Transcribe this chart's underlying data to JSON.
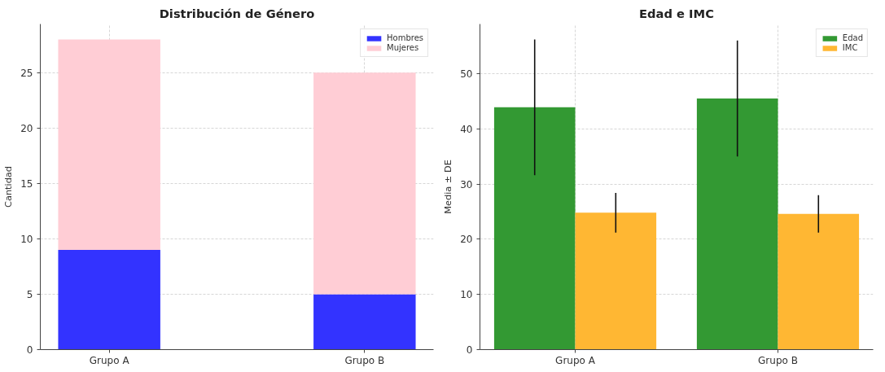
{
  "chart_data": [
    {
      "type": "bar",
      "title": "Distribución de Género",
      "ylabel": "Cantidad",
      "categories": [
        "Grupo A",
        "Grupo B"
      ],
      "stacked": true,
      "series": [
        {
          "name": "Hombres",
          "color": "#3333ff",
          "values": [
            9,
            5
          ]
        },
        {
          "name": "Mujeres",
          "color": "#ffcdd5",
          "values": [
            19,
            20
          ]
        }
      ],
      "ylim": [
        0,
        29.4
      ],
      "yticks": [
        0,
        5,
        10,
        15,
        20,
        25
      ],
      "grid": true,
      "legend": "top right"
    },
    {
      "type": "bar",
      "title": "Edad e IMC",
      "ylabel": "Media ± DE",
      "categories": [
        "Grupo A",
        "Grupo B"
      ],
      "series": [
        {
          "name": "Edad",
          "color": "#339933",
          "values": [
            43.9,
            45.5
          ],
          "errors": [
            12.3,
            10.5
          ]
        },
        {
          "name": "IMC",
          "color": "#ffb733",
          "values": [
            24.8,
            24.6
          ],
          "errors": [
            3.6,
            3.4
          ]
        }
      ],
      "ylim": [
        0,
        59
      ],
      "yticks": [
        0,
        10,
        20,
        30,
        40,
        50
      ],
      "grid": true,
      "legend": "top right"
    }
  ]
}
